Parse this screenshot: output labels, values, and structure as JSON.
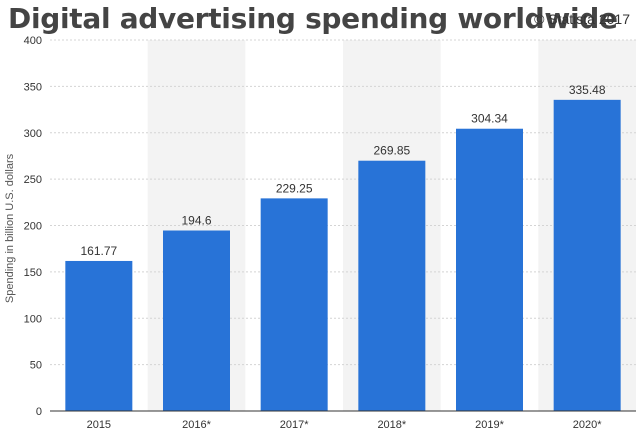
{
  "header": {
    "title": "Digital advertising spending worldwide",
    "credit": "© Statista 2017"
  },
  "colors": {
    "bar": "#2873d7",
    "band": "#f3f3f3",
    "grid": "#d4d4d4",
    "axis": "#333333"
  },
  "chart_data": {
    "type": "bar",
    "title": "Digital advertising spending worldwide",
    "xlabel": "",
    "ylabel": "Spending in billion U.S. dollars",
    "categories": [
      "2015",
      "2016*",
      "2017*",
      "2018*",
      "2019*",
      "2020*"
    ],
    "values": [
      161.77,
      194.6,
      229.25,
      269.85,
      304.34,
      335.48
    ],
    "data_labels": [
      "161.77",
      "194.6",
      "229.25",
      "269.85",
      "304.34",
      "335.48"
    ],
    "ylim": [
      0,
      400
    ],
    "yticks": [
      0,
      50,
      100,
      150,
      200,
      250,
      300,
      350,
      400
    ],
    "grid": true,
    "alternating_bands": true,
    "legend": "none"
  }
}
